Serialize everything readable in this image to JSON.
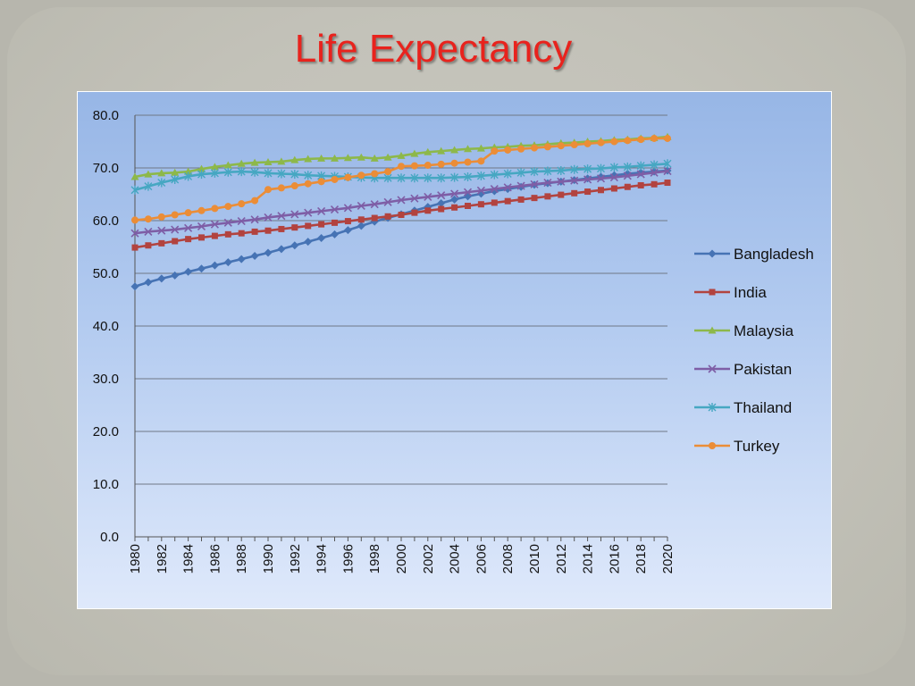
{
  "slide": {
    "title": "Life Expectancy"
  },
  "chart_data": {
    "type": "line",
    "title": "",
    "xlabel": "",
    "ylabel": "",
    "ylim": [
      0,
      80
    ],
    "y_ticks": [
      "0.0",
      "10.0",
      "20.0",
      "30.0",
      "40.0",
      "50.0",
      "60.0",
      "70.0",
      "80.0"
    ],
    "x_tick_labels": [
      "1980",
      "1982",
      "1984",
      "1986",
      "1988",
      "1990",
      "1992",
      "1994",
      "1996",
      "1998",
      "2000",
      "2002",
      "2004",
      "2006",
      "2008",
      "2010",
      "2012",
      "2014",
      "2016",
      "2018",
      "2020"
    ],
    "grid": "horizontal",
    "legend_position": "right",
    "x": [
      1980,
      1981,
      1982,
      1983,
      1984,
      1985,
      1986,
      1987,
      1988,
      1989,
      1990,
      1991,
      1992,
      1993,
      1994,
      1995,
      1996,
      1997,
      1998,
      1999,
      2000,
      2001,
      2002,
      2003,
      2004,
      2005,
      2006,
      2007,
      2008,
      2009,
      2010,
      2011,
      2012,
      2013,
      2014,
      2015,
      2016,
      2017,
      2018,
      2019,
      2020
    ],
    "series": [
      {
        "name": "Bangladesh",
        "color": "#4673b4",
        "marker": "diamond",
        "values": [
          47.5,
          48.3,
          49.0,
          49.6,
          50.3,
          50.9,
          51.5,
          52.1,
          52.7,
          53.3,
          53.9,
          54.6,
          55.3,
          56.0,
          56.7,
          57.4,
          58.2,
          59.0,
          59.8,
          60.5,
          61.2,
          61.9,
          62.6,
          63.3,
          64.0,
          64.6,
          65.1,
          65.6,
          66.0,
          66.4,
          66.8,
          67.1,
          67.4,
          67.7,
          68.0,
          68.3,
          68.6,
          68.9,
          69.1,
          69.3,
          69.5
        ]
      },
      {
        "name": "India",
        "color": "#b2433f",
        "marker": "square",
        "values": [
          54.9,
          55.3,
          55.7,
          56.1,
          56.5,
          56.8,
          57.1,
          57.4,
          57.6,
          57.9,
          58.1,
          58.4,
          58.7,
          59.0,
          59.3,
          59.6,
          59.9,
          60.2,
          60.5,
          60.8,
          61.1,
          61.5,
          61.9,
          62.2,
          62.5,
          62.8,
          63.1,
          63.4,
          63.7,
          64.0,
          64.3,
          64.6,
          64.9,
          65.2,
          65.5,
          65.8,
          66.1,
          66.4,
          66.7,
          66.9,
          67.2
        ]
      },
      {
        "name": "Malaysia",
        "color": "#8db84a",
        "marker": "triangle",
        "values": [
          68.3,
          68.8,
          69.0,
          69.1,
          69.3,
          69.8,
          70.2,
          70.5,
          70.8,
          71.0,
          71.1,
          71.2,
          71.5,
          71.7,
          71.8,
          71.8,
          71.9,
          72.0,
          71.8,
          72.0,
          72.3,
          72.7,
          73.0,
          73.2,
          73.4,
          73.6,
          73.7,
          73.9,
          74.0,
          74.2,
          74.3,
          74.5,
          74.7,
          74.8,
          75.0,
          75.1,
          75.3,
          75.4,
          75.6,
          75.7,
          75.9
        ]
      },
      {
        "name": "Pakistan",
        "color": "#7e5ea6",
        "marker": "x",
        "values": [
          57.6,
          57.9,
          58.1,
          58.3,
          58.6,
          58.9,
          59.3,
          59.6,
          59.9,
          60.2,
          60.6,
          60.9,
          61.2,
          61.5,
          61.8,
          62.1,
          62.4,
          62.8,
          63.1,
          63.5,
          63.9,
          64.2,
          64.5,
          64.8,
          65.1,
          65.4,
          65.7,
          66.0,
          66.3,
          66.6,
          66.9,
          67.2,
          67.4,
          67.6,
          67.8,
          68.0,
          68.2,
          68.5,
          68.8,
          69.1,
          69.4
        ]
      },
      {
        "name": "Thailand",
        "color": "#46a7c2",
        "marker": "star",
        "values": [
          65.8,
          66.5,
          67.2,
          67.8,
          68.4,
          68.8,
          69.0,
          69.2,
          69.3,
          69.2,
          69.0,
          68.9,
          68.8,
          68.6,
          68.5,
          68.4,
          68.3,
          68.2,
          68.1,
          68.1,
          68.1,
          68.1,
          68.1,
          68.1,
          68.2,
          68.3,
          68.5,
          68.7,
          68.9,
          69.1,
          69.3,
          69.4,
          69.5,
          69.7,
          69.8,
          69.9,
          70.1,
          70.2,
          70.4,
          70.6,
          70.8
        ]
      },
      {
        "name": "Turkey",
        "color": "#eb8d37",
        "marker": "circle",
        "values": [
          60.1,
          60.3,
          60.7,
          61.1,
          61.5,
          61.9,
          62.3,
          62.7,
          63.2,
          63.8,
          65.9,
          66.2,
          66.6,
          67.0,
          67.4,
          67.8,
          68.2,
          68.6,
          68.9,
          69.3,
          70.3,
          70.4,
          70.5,
          70.7,
          70.9,
          71.1,
          71.3,
          73.2,
          73.4,
          73.6,
          73.8,
          74.0,
          74.2,
          74.4,
          74.6,
          74.8,
          75.0,
          75.2,
          75.4,
          75.6,
          75.6
        ]
      }
    ]
  }
}
